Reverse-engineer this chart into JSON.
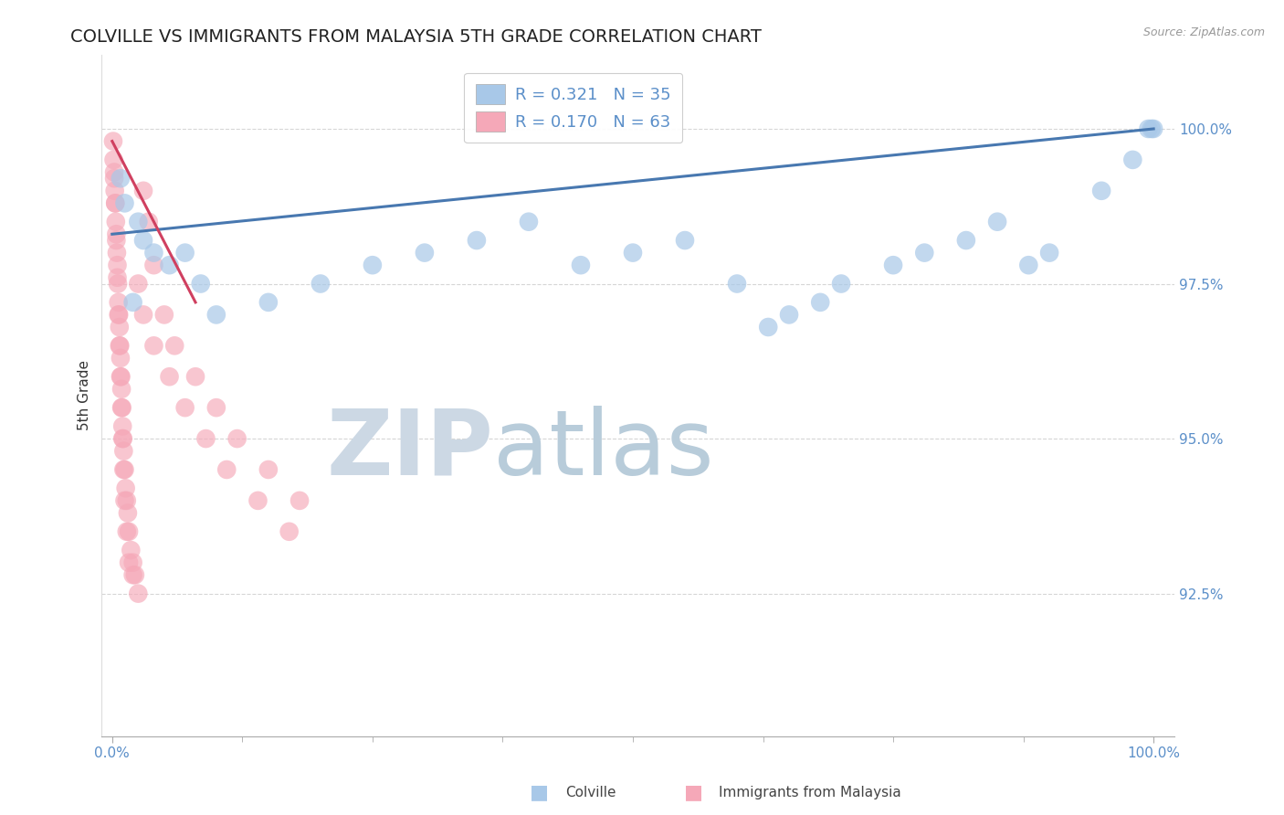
{
  "title": "COLVILLE VS IMMIGRANTS FROM MALAYSIA 5TH GRADE CORRELATION CHART",
  "source": "Source: ZipAtlas.com",
  "ylabel": "5th Grade",
  "xlim": [
    -1.0,
    102.0
  ],
  "ylim": [
    90.2,
    101.2
  ],
  "yticks": [
    92.5,
    95.0,
    97.5,
    100.0
  ],
  "xtick_labels": [
    "0.0%",
    "100.0%"
  ],
  "ytick_labels": [
    "92.5%",
    "95.0%",
    "97.5%",
    "100.0%"
  ],
  "colville_R": 0.321,
  "colville_N": 35,
  "malaysia_R": 0.17,
  "malaysia_N": 63,
  "colville_color": "#a8c8e8",
  "malaysia_color": "#f5a8b8",
  "trend_blue": "#4878b0",
  "trend_pink": "#d04060",
  "watermark_zip": "ZIP",
  "watermark_atlas": "atlas",
  "watermark_color_zip": "#d0dce8",
  "watermark_color_atlas": "#b8ccd8",
  "background_color": "#ffffff",
  "grid_color": "#cccccc",
  "title_color": "#222222",
  "axis_color": "#5b8fc9",
  "colville_x": [
    0.8,
    1.2,
    2.5,
    3.0,
    4.0,
    5.5,
    7.0,
    8.5,
    10.0,
    15.0,
    20.0,
    25.0,
    30.0,
    35.0,
    40.0,
    45.0,
    50.0,
    55.0,
    60.0,
    63.0,
    65.0,
    68.0,
    70.0,
    75.0,
    78.0,
    82.0,
    85.0,
    88.0,
    90.0,
    95.0,
    98.0,
    99.5,
    99.8,
    100.0,
    2.0
  ],
  "colville_y": [
    99.2,
    98.8,
    98.5,
    98.2,
    98.0,
    97.8,
    98.0,
    97.5,
    97.0,
    97.2,
    97.5,
    97.8,
    98.0,
    98.2,
    98.5,
    97.8,
    98.0,
    98.2,
    97.5,
    96.8,
    97.0,
    97.2,
    97.5,
    97.8,
    98.0,
    98.2,
    98.5,
    97.8,
    98.0,
    99.0,
    99.5,
    100.0,
    100.0,
    100.0,
    97.2
  ],
  "malaysia_x": [
    0.1,
    0.15,
    0.2,
    0.25,
    0.3,
    0.35,
    0.4,
    0.45,
    0.5,
    0.55,
    0.6,
    0.65,
    0.7,
    0.75,
    0.8,
    0.85,
    0.9,
    0.95,
    1.0,
    1.05,
    1.1,
    1.2,
    1.3,
    1.4,
    1.5,
    1.6,
    1.8,
    2.0,
    2.2,
    2.5,
    3.0,
    3.5,
    4.0,
    5.0,
    6.0,
    8.0,
    10.0,
    12.0,
    15.0,
    18.0,
    0.2,
    0.3,
    0.4,
    0.5,
    0.6,
    0.7,
    0.8,
    0.9,
    1.0,
    1.1,
    1.2,
    1.4,
    1.6,
    2.0,
    2.5,
    3.0,
    4.0,
    5.5,
    7.0,
    9.0,
    11.0,
    14.0,
    17.0
  ],
  "malaysia_y": [
    99.8,
    99.5,
    99.2,
    99.0,
    98.8,
    98.5,
    98.3,
    98.0,
    97.8,
    97.5,
    97.2,
    97.0,
    96.8,
    96.5,
    96.3,
    96.0,
    95.8,
    95.5,
    95.2,
    95.0,
    94.8,
    94.5,
    94.2,
    94.0,
    93.8,
    93.5,
    93.2,
    93.0,
    92.8,
    92.5,
    99.0,
    98.5,
    97.8,
    97.0,
    96.5,
    96.0,
    95.5,
    95.0,
    94.5,
    94.0,
    99.3,
    98.8,
    98.2,
    97.6,
    97.0,
    96.5,
    96.0,
    95.5,
    95.0,
    94.5,
    94.0,
    93.5,
    93.0,
    92.8,
    97.5,
    97.0,
    96.5,
    96.0,
    95.5,
    95.0,
    94.5,
    94.0,
    93.5
  ],
  "trend_blue_x0": 0,
  "trend_blue_y0": 98.3,
  "trend_blue_x1": 100,
  "trend_blue_y1": 100.0,
  "trend_pink_x0": 0,
  "trend_pink_y0": 99.8,
  "trend_pink_x1": 8,
  "trend_pink_y1": 97.2
}
